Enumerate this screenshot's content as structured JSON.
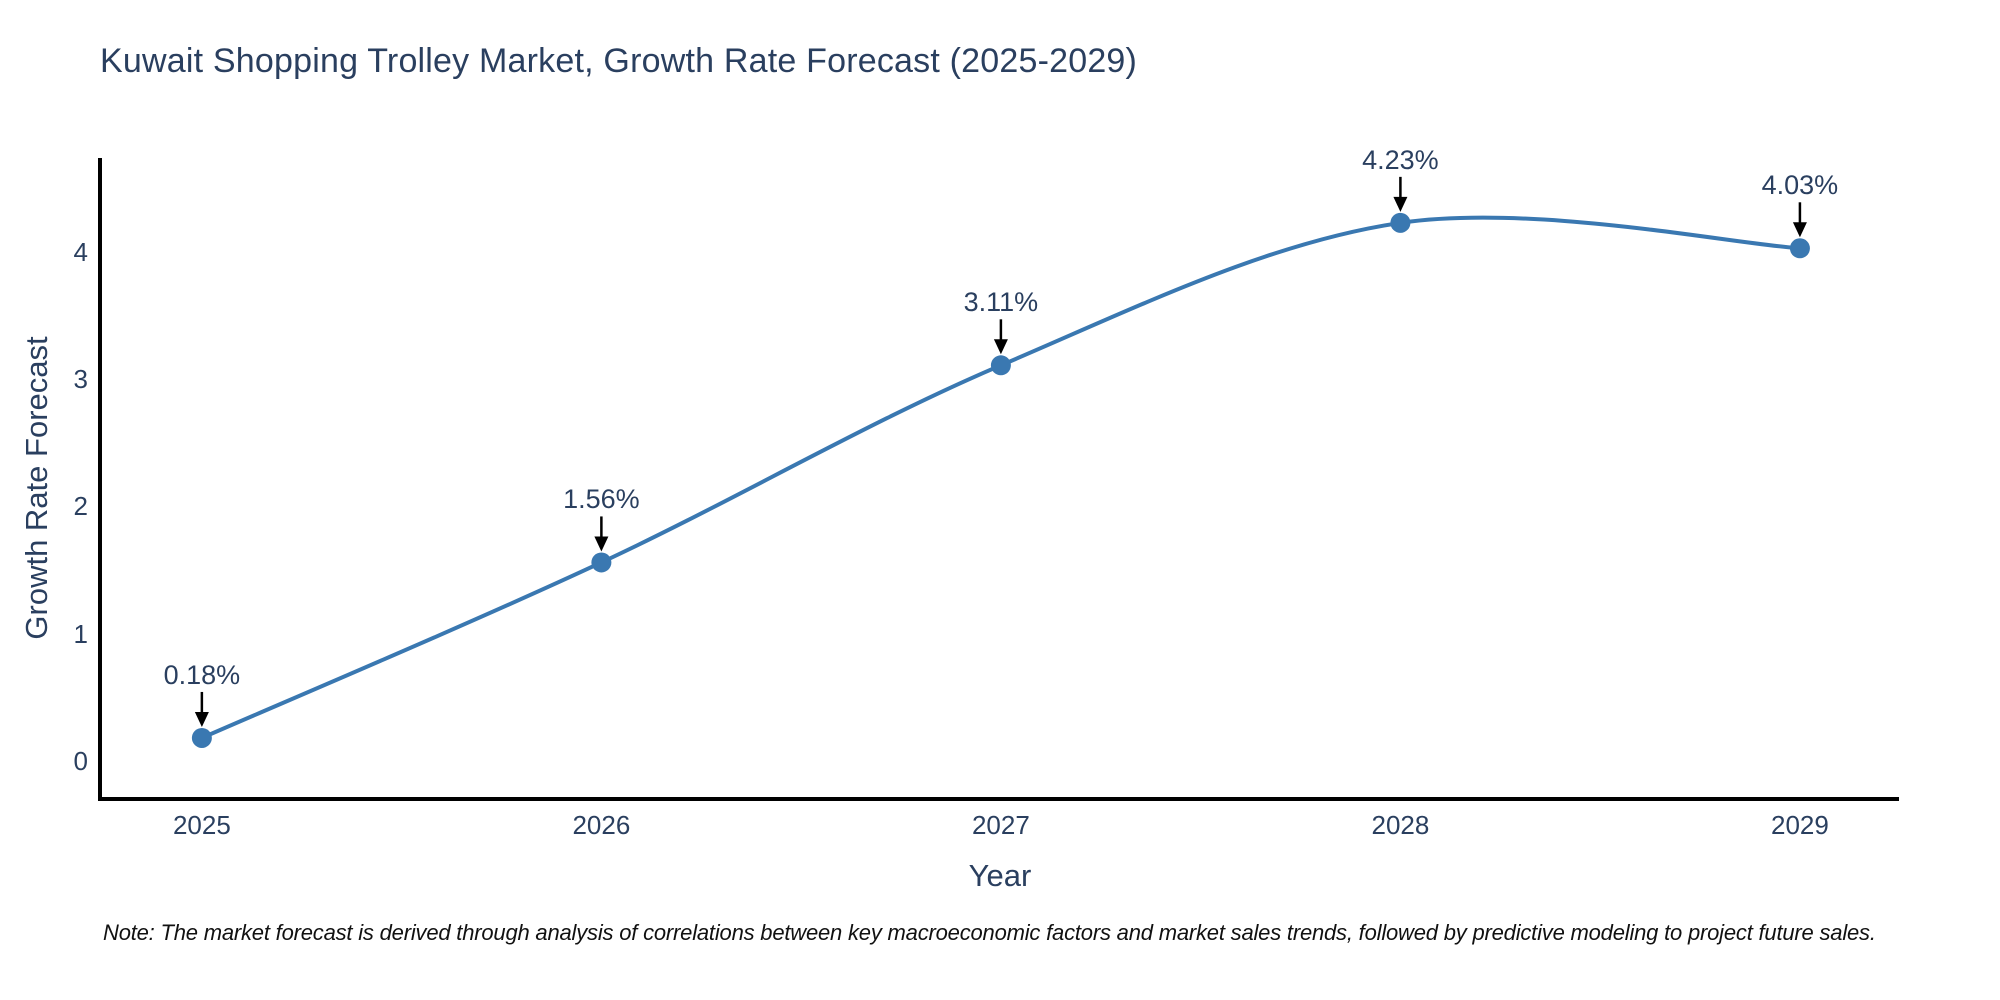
{
  "title": "Kuwait Shopping Trolley Market, Growth Rate Forecast (2025-2029)",
  "note": "Note: The market forecast is derived through analysis of correlations between key macroeconomic factors and market sales trends, followed by predictive modeling to project future sales.",
  "chart_data": {
    "type": "line",
    "title": "Kuwait Shopping Trolley Market, Growth Rate Forecast (2025-2029)",
    "xlabel": "Year",
    "ylabel": "Growth Rate Forecast",
    "x": [
      2025,
      2026,
      2027,
      2028,
      2029
    ],
    "values": [
      0.18,
      1.56,
      3.11,
      4.23,
      4.03
    ],
    "point_labels": [
      "0.18%",
      "1.56%",
      "3.11%",
      "4.23%",
      "4.03%"
    ],
    "xticks": [
      "2025",
      "2026",
      "2027",
      "2028",
      "2029"
    ],
    "xtick_values": [
      2025,
      2026,
      2027,
      2028,
      2029
    ],
    "yticks": [
      0,
      1,
      2,
      3,
      4
    ],
    "xlim": [
      2024.745,
      2029.248
    ],
    "ylim": [
      -0.3,
      4.74
    ],
    "line_shape": "spline",
    "grid": false,
    "legend": "none",
    "colors": {
      "line": "#3a78b1",
      "marker": "#3a78b1",
      "axis": "#000000",
      "annotation_arrow": "#000000",
      "title_text": "#2a3f5f",
      "tick_text": "#2a3f5f",
      "note_text": "#111111",
      "background": "#ffffff"
    }
  }
}
